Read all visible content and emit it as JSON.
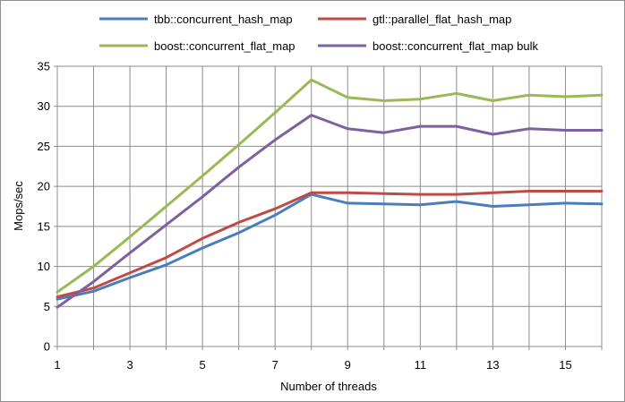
{
  "chart_data": {
    "type": "line",
    "title": "",
    "xlabel": "Number of threads",
    "ylabel": "Mops/sec",
    "xlim": [
      1,
      16
    ],
    "ylim": [
      0,
      35
    ],
    "x_ticks": [
      1,
      3,
      5,
      7,
      9,
      11,
      13,
      15
    ],
    "y_ticks": [
      0,
      5,
      10,
      15,
      20,
      25,
      30,
      35
    ],
    "grid": true,
    "legend_position": "top",
    "x": [
      1,
      2,
      3,
      4,
      5,
      6,
      7,
      8,
      9,
      10,
      11,
      12,
      13,
      14,
      15,
      16
    ],
    "series": [
      {
        "name": "tbb::concurrent_hash_map",
        "color": "#4a7ebb",
        "values": [
          5.9,
          6.9,
          8.6,
          10.2,
          12.3,
          14.2,
          16.4,
          19.0,
          17.9,
          17.8,
          17.7,
          18.1,
          17.5,
          17.7,
          17.9,
          17.8
        ]
      },
      {
        "name": "gtl::parallel_flat_hash_map",
        "color": "#be4b48",
        "values": [
          6.2,
          7.3,
          9.2,
          11.1,
          13.5,
          15.5,
          17.2,
          19.2,
          19.2,
          19.1,
          19.0,
          19.0,
          19.2,
          19.4,
          19.4,
          19.4
        ]
      },
      {
        "name": "boost::concurrent_flat_map",
        "color": "#98b954",
        "values": [
          6.8,
          10.0,
          13.7,
          17.5,
          21.3,
          25.2,
          29.2,
          33.3,
          31.1,
          30.7,
          30.9,
          31.6,
          30.7,
          31.4,
          31.2,
          31.4
        ]
      },
      {
        "name": "boost::concurrent_flat_map bulk",
        "color": "#7d60a0",
        "values": [
          4.9,
          8.1,
          11.7,
          15.2,
          18.7,
          22.4,
          25.8,
          28.9,
          27.2,
          26.7,
          27.5,
          27.5,
          26.5,
          27.2,
          27.0,
          27.0
        ]
      }
    ]
  }
}
